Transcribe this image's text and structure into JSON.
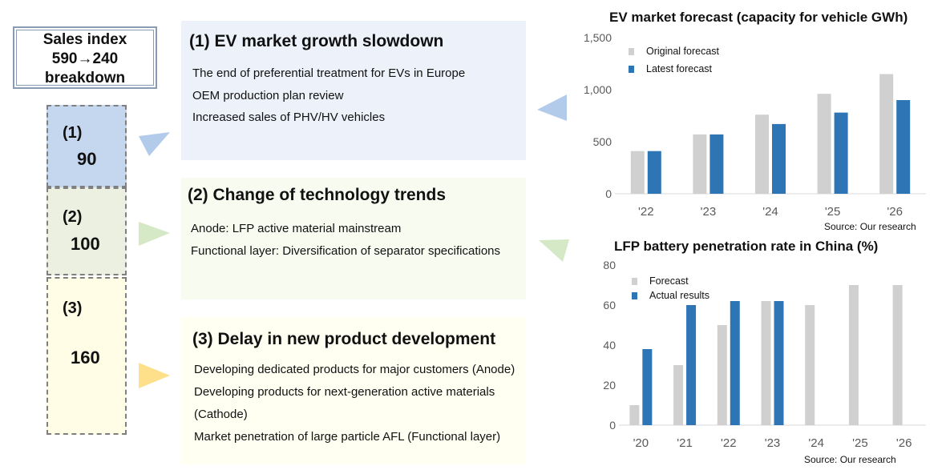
{
  "sales_index": {
    "line1": "Sales index",
    "line2": "590→240",
    "line3": "breakdown"
  },
  "segments": [
    {
      "label": "(1)",
      "value": "90"
    },
    {
      "label": "(2)",
      "value": "100"
    },
    {
      "label": "(3)",
      "value": "160"
    }
  ],
  "panels": [
    {
      "title": "(1) EV market growth slowdown",
      "lines": [
        "The end of preferential treatment for EVs in Europe",
        "OEM production plan review",
        "Increased sales of PHV/HV vehicles"
      ]
    },
    {
      "title": "(2) Change of technology trends",
      "lines": [
        "Anode: LFP active material mainstream",
        "Functional layer: Diversification of separator specifications"
      ]
    },
    {
      "title": "(3) Delay in new product development",
      "lines": [
        "Developing dedicated products for major customers (Anode)",
        "Developing products for next-generation active materials",
        "(Cathode)",
        "Market penetration of large particle AFL (Functional layer)"
      ]
    }
  ],
  "colors": {
    "seg1": "#c5d7ef",
    "seg2": "#ebf0e0",
    "seg3": "#fffde6",
    "panel1": "#edf2fa",
    "panel2": "#f8fbf0",
    "panel3": "#fffff2",
    "arrow1": "#b3cbea",
    "arrow2": "#d6e9c6",
    "arrow3": "#ffe08a",
    "gray_bar": "#d0d0d0",
    "blue_bar": "#2e75b6"
  },
  "chart_data": [
    {
      "type": "bar",
      "title": "EV market forecast (capacity for vehicle GWh)",
      "categories": [
        "'22",
        "'23",
        "'24",
        "'25",
        "'26"
      ],
      "series": [
        {
          "name": "Original forecast",
          "values": [
            410,
            570,
            760,
            960,
            1150
          ]
        },
        {
          "name": "Latest forecast",
          "values": [
            410,
            570,
            670,
            780,
            900
          ]
        }
      ],
      "ylim": [
        0,
        1500
      ],
      "yticks": [
        "0",
        "500",
        "1,000",
        "1,500"
      ],
      "ytick_values": [
        0,
        500,
        1000,
        1500
      ],
      "legend": "top-left",
      "grid": false,
      "source": "Source: Our research"
    },
    {
      "type": "bar",
      "title": "LFP battery penetration rate in China (%)",
      "categories": [
        "'20",
        "'21",
        "'22",
        "'23",
        "'24",
        "'25",
        "'26"
      ],
      "series": [
        {
          "name": "Forecast",
          "values": [
            10,
            30,
            50,
            62,
            60,
            70,
            70
          ]
        },
        {
          "name": "Actual results",
          "values": [
            38,
            60,
            62,
            62,
            null,
            null,
            null
          ]
        }
      ],
      "ylim": [
        0,
        80
      ],
      "yticks": [
        "0",
        "20",
        "40",
        "60",
        "80"
      ],
      "ytick_values": [
        0,
        20,
        40,
        60,
        80
      ],
      "legend": "top-left",
      "grid": false,
      "source": "Source: Our research"
    }
  ]
}
